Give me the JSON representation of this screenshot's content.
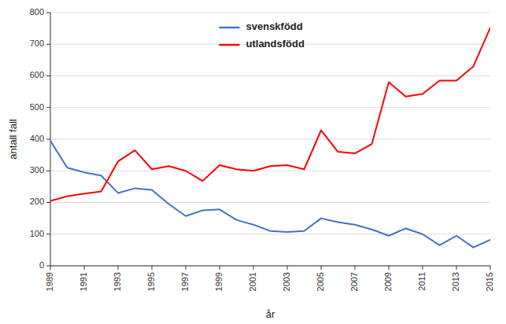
{
  "chart_data": {
    "type": "line",
    "x": [
      1989,
      1990,
      1991,
      1992,
      1993,
      1994,
      1995,
      1996,
      1997,
      1998,
      1999,
      2000,
      2001,
      2002,
      2003,
      2004,
      2005,
      2006,
      2007,
      2008,
      2009,
      2010,
      2011,
      2012,
      2013,
      2014,
      2015
    ],
    "series": [
      {
        "name": "svenskfödd",
        "color": "#4472C4",
        "values": [
          395,
          310,
          295,
          285,
          230,
          245,
          240,
          195,
          157,
          175,
          178,
          145,
          130,
          110,
          107,
          110,
          150,
          138,
          130,
          115,
          95,
          118,
          100,
          65,
          95,
          58,
          82
        ]
      },
      {
        "name": "utlandsfödd",
        "color": "#FF0000",
        "values": [
          205,
          220,
          228,
          235,
          330,
          365,
          305,
          315,
          300,
          268,
          318,
          305,
          300,
          315,
          318,
          305,
          428,
          360,
          355,
          385,
          580,
          535,
          543,
          585,
          585,
          630,
          752
        ]
      }
    ],
    "xlabel": "år",
    "ylabel": "antall fall",
    "xlim": [
      1989,
      2015
    ],
    "xticks": [
      1989,
      1991,
      1993,
      1995,
      1997,
      1999,
      2001,
      2003,
      2005,
      2007,
      2009,
      2011,
      2013,
      2015
    ],
    "ylim": [
      0,
      800
    ],
    "yticks": [
      0,
      100,
      200,
      300,
      400,
      500,
      600,
      700,
      800
    ],
    "grid": true,
    "legend": "top"
  }
}
